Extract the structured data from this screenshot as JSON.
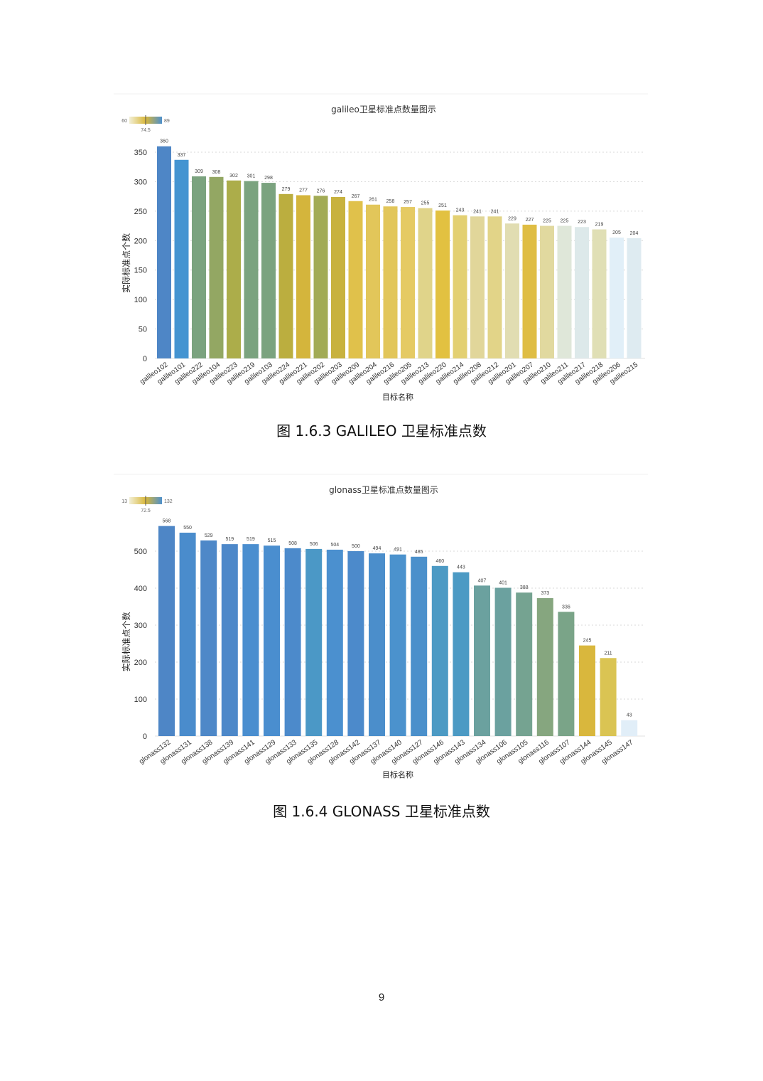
{
  "page": {
    "caption_1": "图 1.6.3 GALILEO 卫星标准点数",
    "caption_2": "图 1.6.4 GLONASS 卫星标准点数",
    "page_number": "9"
  },
  "chart_data": [
    {
      "type": "bar",
      "title": "galileo卫星标准点数量图示",
      "xlabel": "目标名称",
      "ylabel": "实际标准点个数",
      "ylim": [
        0,
        360
      ],
      "yticks": [
        0,
        50,
        100,
        150,
        200,
        250,
        300,
        350
      ],
      "grid": true,
      "legend": {
        "kind": "color-scale",
        "placement": "top-left",
        "min_label": "60",
        "mid_label": "74.5",
        "max_label": "89"
      },
      "categories": [
        "galileo102",
        "galileo101",
        "galileo222",
        "galileo104",
        "galileo223",
        "galileo219",
        "galileo103",
        "galileo224",
        "galileo221",
        "galileo202",
        "galileo203",
        "galileo209",
        "galileo204",
        "galileo216",
        "galileo205",
        "galileo213",
        "galileo220",
        "galileo214",
        "galileo208",
        "galileo212",
        "galileo201",
        "galileo207",
        "galileo210",
        "galileo211",
        "galileo217",
        "galileo218",
        "galileo206",
        "galileo215"
      ],
      "values": [
        360,
        337,
        309,
        308,
        302,
        301,
        298,
        279,
        277,
        276,
        274,
        267,
        261,
        258,
        257,
        255,
        251,
        243,
        241,
        241,
        229,
        227,
        225,
        225,
        223,
        219,
        205,
        204
      ],
      "colors": [
        "#4e86c6",
        "#4494d1",
        "#7ba37f",
        "#93a763",
        "#acad4a",
        "#7ba37f",
        "#7ba37f",
        "#bbae3f",
        "#d4b53c",
        "#a2ab55",
        "#c8b23e",
        "#e0c14b",
        "#e2c65a",
        "#e2c65a",
        "#e5ca63",
        "#e0d48a",
        "#e2c141",
        "#e3d072",
        "#e1d69a",
        "#e2d488",
        "#e1ddb2",
        "#dfbd44",
        "#e1d99f",
        "#dfe7d9",
        "#dde9ea",
        "#e0dfb5",
        "#e1eff8",
        "#deebf1"
      ]
    },
    {
      "type": "bar",
      "title": "glonass卫星标准点数量图示",
      "xlabel": "目标名称",
      "ylabel": "实际标准点个数",
      "ylim": [
        0,
        568
      ],
      "yticks": [
        0,
        100,
        200,
        300,
        400,
        500
      ],
      "grid": true,
      "legend": {
        "kind": "color-scale",
        "placement": "top-left",
        "min_label": "13",
        "mid_label": "72.5",
        "max_label": "132"
      },
      "categories": [
        "glonass132",
        "glonass131",
        "glonass138",
        "glonass139",
        "glonass141",
        "glonass129",
        "glonass133",
        "glonass135",
        "glonass128",
        "glonass142",
        "glonass137",
        "glonass140",
        "glonass127",
        "glonass146",
        "glonass143",
        "glonass134",
        "glonass106",
        "glonass105",
        "glonass116",
        "glonass107",
        "glonass144",
        "glonass145",
        "glonass147"
      ],
      "values": [
        568,
        550,
        529,
        519,
        519,
        515,
        508,
        506,
        504,
        500,
        494,
        491,
        485,
        460,
        443,
        407,
        401,
        388,
        373,
        336,
        245,
        211,
        43
      ],
      "colors": [
        "#4e86c6",
        "#4a8ccc",
        "#4e88c8",
        "#4d88c9",
        "#4a8ecf",
        "#4a8ecf",
        "#4c8acb",
        "#4b98c6",
        "#4b90cf",
        "#4c8acb",
        "#4b8ecb",
        "#4b92cd",
        "#4b90cb",
        "#4c9ac4",
        "#4c9ac4",
        "#6ba19f",
        "#6ba19f",
        "#75a391",
        "#86a67f",
        "#7aa488",
        "#d9b73d",
        "#dac453",
        "#e1eef8"
      ]
    }
  ]
}
